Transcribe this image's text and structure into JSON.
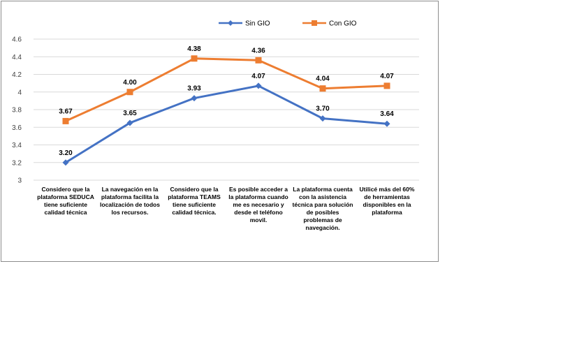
{
  "chart_data": {
    "type": "line",
    "title": "",
    "xlabel": "",
    "ylabel": "",
    "ylim": [
      3,
      4.6
    ],
    "yticks": [
      3,
      3.2,
      3.4,
      3.6,
      3.8,
      4,
      4.2,
      4.4,
      4.6
    ],
    "ytick_labels": [
      "3",
      "3.2",
      "3.4",
      "3.6",
      "3.8",
      "4",
      "4.2",
      "4.4",
      "4.6"
    ],
    "grid": true,
    "legend_position": "top",
    "categories": [
      "Considero que la plataforma SEDUCA tiene suficiente calidad técnica",
      "La navegación en la plataforma facilita la localización de todos los recursos.",
      "Considero que la plataforma TEAMS tiene suficiente calidad técnica.",
      "Es posible acceder a la plataforma cuando me es necesario y desde el teléfono movil.",
      "La plataforma cuenta con la asistencia técnica para solución de posibles problemas de navegación.",
      "Utilicé más del 60% de herramientas disponibles en la plataforma"
    ],
    "series": [
      {
        "name": "Sin GIO",
        "color": "#4472C4",
        "marker": "diamond",
        "values": [
          3.2,
          3.65,
          3.93,
          4.07,
          3.7,
          3.64
        ],
        "labels": [
          "3.20",
          "3.65",
          "3.93",
          "4.07",
          "3.70",
          "3.64"
        ]
      },
      {
        "name": "Con GIO",
        "color": "#ED7D31",
        "marker": "square",
        "values": [
          3.67,
          4.0,
          4.38,
          4.36,
          4.04,
          4.07
        ],
        "labels": [
          "3.67",
          "4.00",
          "4.38",
          "4.36",
          "4.04",
          "4.07"
        ]
      }
    ]
  }
}
